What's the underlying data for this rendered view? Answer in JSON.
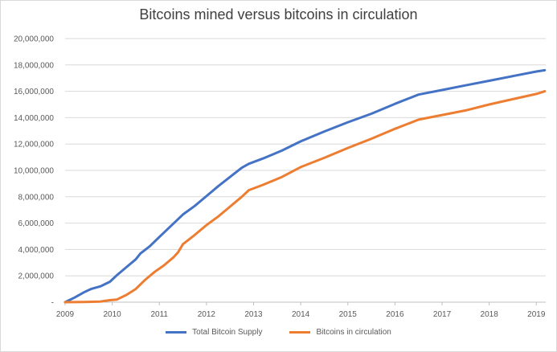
{
  "chart_data": {
    "type": "line",
    "title": "Bitcoins mined versus bitcoins in circulation",
    "xlabel": "",
    "ylabel": "",
    "ylim": [
      0,
      20000000
    ],
    "xlim": [
      2009.0,
      2019.2
    ],
    "y_ticks": [
      "-",
      "2,000,000",
      "4,000,000",
      "6,000,000",
      "8,000,000",
      "10,000,000",
      "12,000,000",
      "14,000,000",
      "16,000,000",
      "18,000,000",
      "20,000,000"
    ],
    "x_ticks": [
      "2009",
      "2010",
      "2011",
      "2012",
      "2013",
      "2014",
      "2015",
      "2016",
      "2017",
      "2018",
      "2019"
    ],
    "grid": "horizontal",
    "legend": "bottom",
    "series": [
      {
        "name": "Total Bitcoin Supply",
        "color": "#4472c4",
        "points": [
          [
            2009.0,
            0
          ],
          [
            2009.2,
            350000
          ],
          [
            2009.4,
            750000
          ],
          [
            2009.55,
            1000000
          ],
          [
            2009.75,
            1200000
          ],
          [
            2009.95,
            1550000
          ],
          [
            2010.1,
            2050000
          ],
          [
            2010.3,
            2650000
          ],
          [
            2010.5,
            3250000
          ],
          [
            2010.6,
            3700000
          ],
          [
            2010.8,
            4250000
          ],
          [
            2011.0,
            4950000
          ],
          [
            2011.25,
            5800000
          ],
          [
            2011.5,
            6650000
          ],
          [
            2011.75,
            7300000
          ],
          [
            2012.0,
            8050000
          ],
          [
            2012.25,
            8800000
          ],
          [
            2012.5,
            9500000
          ],
          [
            2012.75,
            10200000
          ],
          [
            2012.9,
            10500000
          ],
          [
            2013.2,
            10900000
          ],
          [
            2013.6,
            11500000
          ],
          [
            2014.0,
            12200000
          ],
          [
            2014.5,
            12950000
          ],
          [
            2015.0,
            13650000
          ],
          [
            2015.5,
            14300000
          ],
          [
            2016.0,
            15050000
          ],
          [
            2016.5,
            15750000
          ],
          [
            2017.0,
            16100000
          ],
          [
            2017.5,
            16450000
          ],
          [
            2018.0,
            16800000
          ],
          [
            2018.5,
            17150000
          ],
          [
            2019.0,
            17500000
          ],
          [
            2019.18,
            17600000
          ]
        ]
      },
      {
        "name": "Bitcoins in circulation",
        "color": "#ed7d31",
        "points": [
          [
            2009.0,
            0
          ],
          [
            2009.4,
            20000
          ],
          [
            2009.75,
            50000
          ],
          [
            2009.95,
            150000
          ],
          [
            2010.1,
            200000
          ],
          [
            2010.3,
            550000
          ],
          [
            2010.5,
            1000000
          ],
          [
            2010.7,
            1700000
          ],
          [
            2010.9,
            2300000
          ],
          [
            2011.1,
            2800000
          ],
          [
            2011.3,
            3400000
          ],
          [
            2011.4,
            3800000
          ],
          [
            2011.5,
            4400000
          ],
          [
            2011.75,
            5100000
          ],
          [
            2012.0,
            5850000
          ],
          [
            2012.25,
            6500000
          ],
          [
            2012.5,
            7250000
          ],
          [
            2012.75,
            8000000
          ],
          [
            2012.9,
            8500000
          ],
          [
            2013.2,
            8900000
          ],
          [
            2013.6,
            9500000
          ],
          [
            2014.0,
            10250000
          ],
          [
            2014.5,
            10950000
          ],
          [
            2015.0,
            11700000
          ],
          [
            2015.5,
            12400000
          ],
          [
            2016.0,
            13150000
          ],
          [
            2016.5,
            13850000
          ],
          [
            2017.0,
            14200000
          ],
          [
            2017.5,
            14550000
          ],
          [
            2018.0,
            15000000
          ],
          [
            2018.5,
            15400000
          ],
          [
            2019.0,
            15800000
          ],
          [
            2019.18,
            16000000
          ]
        ]
      }
    ]
  }
}
